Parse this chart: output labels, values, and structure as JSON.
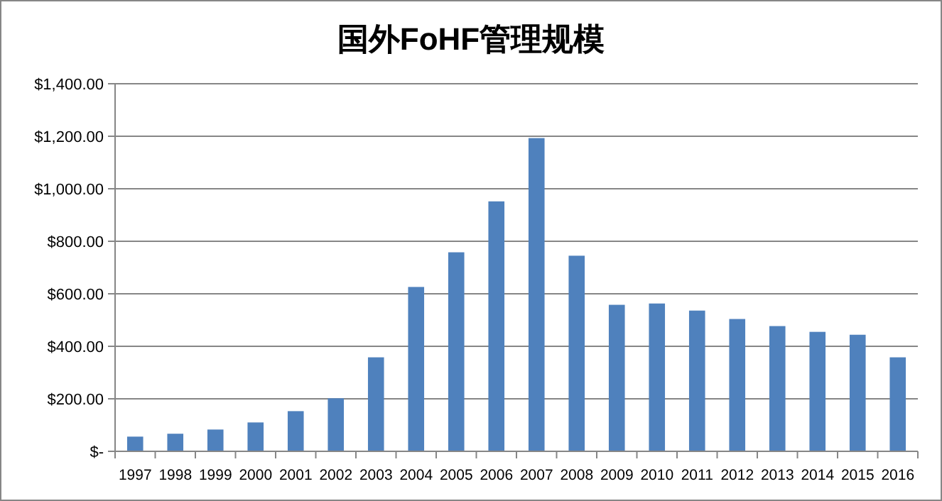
{
  "chart_data": {
    "type": "bar",
    "title": "国外FoHF管理规模",
    "categories": [
      "1997",
      "1998",
      "1999",
      "2000",
      "2001",
      "2002",
      "2003",
      "2004",
      "2005",
      "2006",
      "2007",
      "2008",
      "2009",
      "2010",
      "2011",
      "2012",
      "2013",
      "2014",
      "2015",
      "2016"
    ],
    "values": [
      56,
      67,
      83,
      110,
      153,
      202,
      358,
      626,
      758,
      952,
      1193,
      745,
      558,
      563,
      536,
      504,
      477,
      455,
      444,
      358
    ],
    "color": "#4f81bd",
    "ylim": [
      0,
      1400
    ],
    "yticks": [
      {
        "value": 0,
        "label": "$-"
      },
      {
        "value": 200,
        "label": "$200.00"
      },
      {
        "value": 400,
        "label": "$400.00"
      },
      {
        "value": 600,
        "label": "$600.00"
      },
      {
        "value": 800,
        "label": "$800.00"
      },
      {
        "value": 1000,
        "label": "$1,000.00"
      },
      {
        "value": 1200,
        "label": "$1,200.00"
      },
      {
        "value": 1400,
        "label": "$1,400.00"
      }
    ],
    "grid": "y"
  }
}
